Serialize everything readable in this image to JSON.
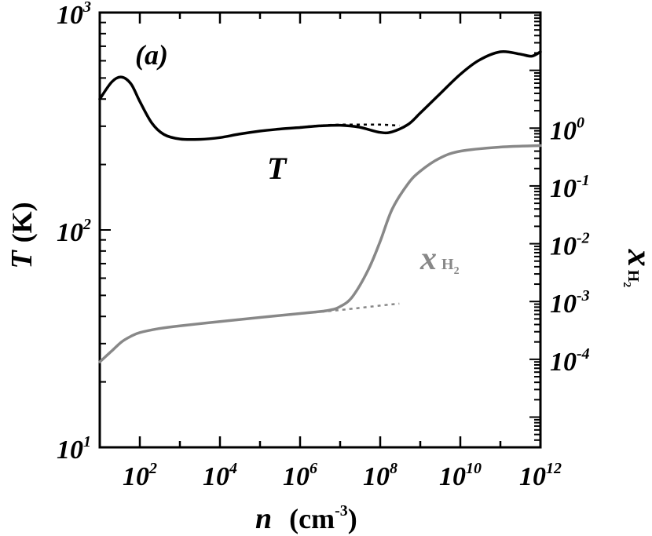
{
  "chart_data": {
    "type": "line",
    "panel_label": "(a)",
    "x_axis": {
      "label": "n",
      "unit_text": "(cm",
      "unit_exp": "-3",
      "unit_close": ")",
      "scale": "log",
      "range": [
        10,
        1000000000000
      ],
      "ticks": [
        {
          "base": "10",
          "exp": "2",
          "value": 100
        },
        {
          "base": "10",
          "exp": "4",
          "value": 10000
        },
        {
          "base": "10",
          "exp": "6",
          "value": 1000000
        },
        {
          "base": "10",
          "exp": "8",
          "value": 100000000
        },
        {
          "base": "10",
          "exp": "10",
          "value": 10000000000
        },
        {
          "base": "10",
          "exp": "12",
          "value": 1000000000000
        }
      ]
    },
    "y_left": {
      "label": "T",
      "unit_text": "(K)",
      "scale": "log",
      "range": [
        10,
        1000
      ],
      "ticks": [
        {
          "base": "10",
          "exp": "1",
          "value": 10
        },
        {
          "base": "10",
          "exp": "2",
          "value": 100
        },
        {
          "base": "10",
          "exp": "3",
          "value": 1000
        }
      ]
    },
    "y_right": {
      "label": "x",
      "label_sub": "H",
      "label_sub2": "2",
      "scale": "log",
      "range": [
        3e-06,
        100
      ],
      "ticks": [
        {
          "base": "10",
          "exp": "0",
          "value": 1
        },
        {
          "base": "10",
          "exp": "-1",
          "value": 0.1
        },
        {
          "base": "10",
          "exp": "-2",
          "value": 0.01
        },
        {
          "base": "10",
          "exp": "-3",
          "value": 0.001
        },
        {
          "base": "10",
          "exp": "-4",
          "value": 0.0001
        }
      ]
    },
    "series": [
      {
        "name": "T",
        "axis": "left",
        "color": "#000000",
        "style": "solid",
        "points": [
          [
            10,
            400
          ],
          [
            20,
            480
          ],
          [
            35,
            505
          ],
          [
            60,
            470
          ],
          [
            100,
            390
          ],
          [
            200,
            310
          ],
          [
            400,
            275
          ],
          [
            1000,
            262
          ],
          [
            3000,
            261
          ],
          [
            10000,
            266
          ],
          [
            30000,
            276
          ],
          [
            100000,
            285
          ],
          [
            300000,
            291
          ],
          [
            1000000,
            296
          ],
          [
            3000000,
            301
          ],
          [
            10000000,
            303
          ],
          [
            30000000,
            297
          ],
          [
            100000000,
            281
          ],
          [
            200000000,
            283
          ],
          [
            500000000,
            306
          ],
          [
            1000000000,
            345
          ],
          [
            3000000000,
            420
          ],
          [
            10000000000,
            520
          ],
          [
            30000000000,
            605
          ],
          [
            100000000000,
            660
          ],
          [
            300000000000,
            645
          ],
          [
            600000000000,
            630
          ],
          [
            1000000000000,
            660
          ]
        ]
      },
      {
        "name": "",
        "axis": "left",
        "color": "#000000",
        "style": "dotted",
        "points": [
          [
            300000,
            291
          ],
          [
            1000000,
            297
          ],
          [
            3000000,
            302
          ],
          [
            10000000,
            305
          ],
          [
            30000000,
            305
          ],
          [
            100000000,
            305
          ],
          [
            300000000,
            302
          ]
        ]
      },
      {
        "name": "x_H2",
        "axis": "right",
        "color": "#888888",
        "style": "solid",
        "points": [
          [
            10,
            9e-05
          ],
          [
            20,
            0.00014
          ],
          [
            35,
            0.0002
          ],
          [
            60,
            0.00025
          ],
          [
            100,
            0.00029
          ],
          [
            300,
            0.00034
          ],
          [
            1000,
            0.00038
          ],
          [
            10000,
            0.00045
          ],
          [
            100000,
            0.00053
          ],
          [
            1000000,
            0.00062
          ],
          [
            5000000,
            0.0007
          ],
          [
            10000000,
            0.00082
          ],
          [
            20000000,
            0.0012
          ],
          [
            50000000,
            0.0035
          ],
          [
            100000000,
            0.011
          ],
          [
            200000000,
            0.04
          ],
          [
            500000000,
            0.11
          ],
          [
            1000000000,
            0.18
          ],
          [
            3000000000,
            0.3
          ],
          [
            10000000000,
            0.4
          ],
          [
            100000000000,
            0.47
          ],
          [
            1000000000000,
            0.5
          ]
        ]
      },
      {
        "name": "",
        "axis": "right",
        "color": "#888888",
        "style": "dotted",
        "points": [
          [
            1000000,
            0.00062
          ],
          [
            5000000,
            0.00068
          ],
          [
            20000000,
            0.00075
          ],
          [
            100000000,
            0.00085
          ],
          [
            300000000,
            0.00092
          ]
        ]
      }
    ],
    "annotations": [
      {
        "text": "T",
        "near": "T curve"
      },
      {
        "text": "x",
        "sub": "H",
        "sub2": "2",
        "near": "x_H2 curve"
      }
    ],
    "legend": "none",
    "grid": false
  }
}
